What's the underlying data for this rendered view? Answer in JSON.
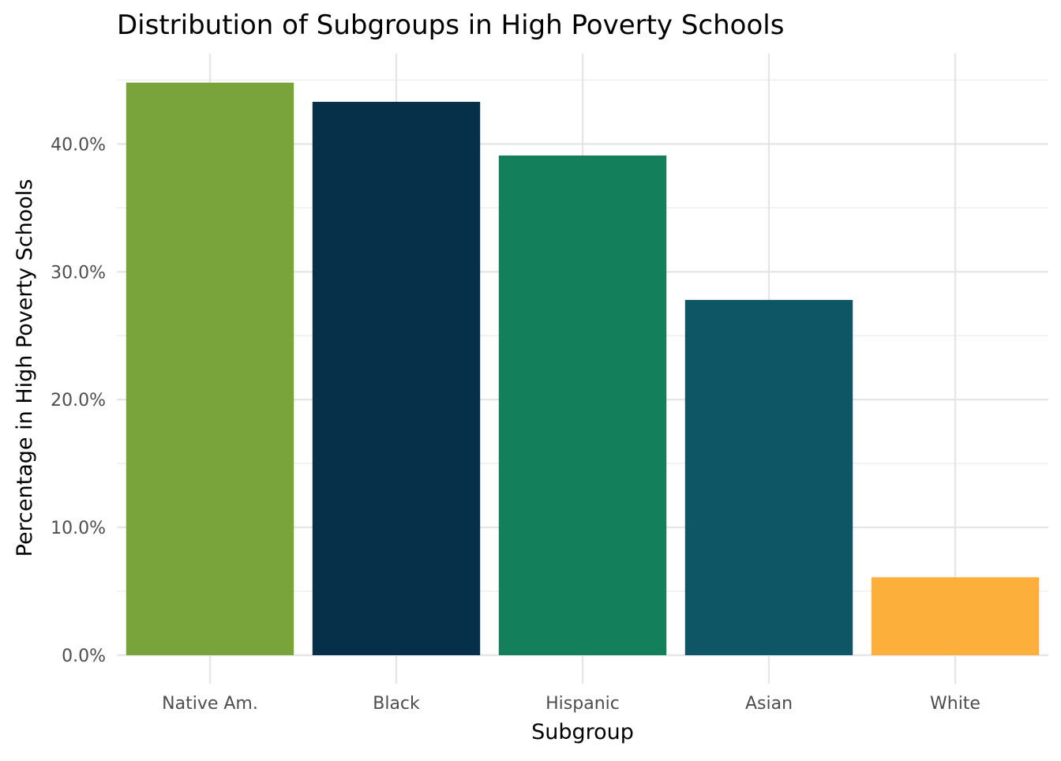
{
  "chart_data": {
    "type": "bar",
    "title": "Distribution of Subgroups in High Poverty Schools",
    "xlabel": "Subgroup",
    "ylabel": "Percentage in High Poverty Schools",
    "categories": [
      "Native Am.",
      "Black",
      "Hispanic",
      "Asian",
      "White"
    ],
    "values": [
      44.8,
      43.3,
      39.1,
      27.8,
      6.1
    ],
    "colors": [
      "#78A43B",
      "#06304A",
      "#137F5B",
      "#0E5666",
      "#FDAF3B"
    ],
    "value_unit": "percent",
    "ylim": [
      0,
      45
    ],
    "yticks": [
      0,
      10,
      20,
      30,
      40
    ],
    "ytick_labels": [
      "0.0%",
      "10.0%",
      "20.0%",
      "30.0%",
      "40.0%"
    ],
    "grid": true,
    "legend": "none"
  }
}
